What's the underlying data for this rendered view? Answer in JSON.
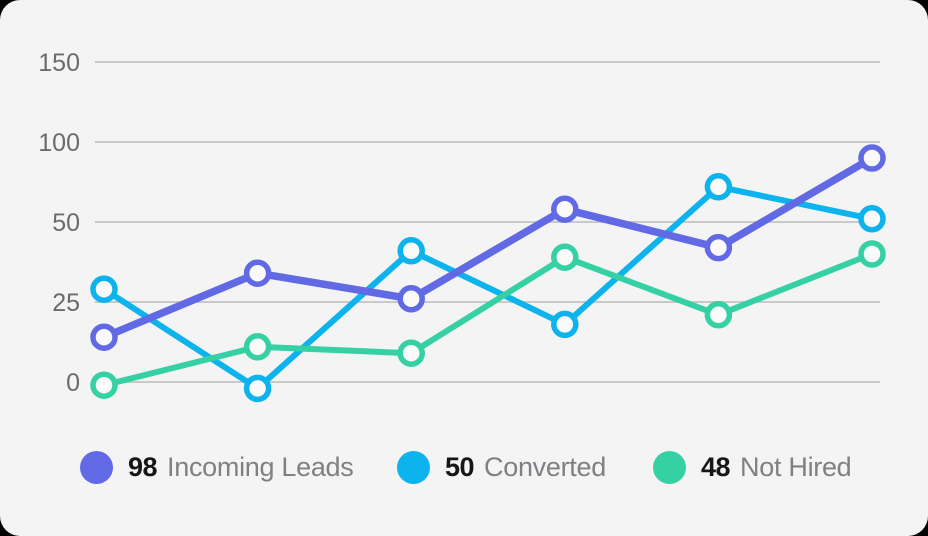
{
  "app": {
    "background_color": "#f4f4f5",
    "outside_color": "#000000",
    "gridline_color": "#c9c9c9",
    "axis_text_color": "#6b6b6e"
  },
  "chart_data": {
    "type": "line",
    "num_points": 6,
    "x_labels": [],
    "y_axis": {
      "tick_labels": [
        "150",
        "100",
        "50",
        "25",
        "0"
      ],
      "tick_values": [
        150,
        100,
        50,
        25,
        0
      ],
      "scale_note": "non-linear: listed ticks are equally spaced",
      "grid": true
    },
    "legend_position": "bottom",
    "series": [
      {
        "name": "Incoming Leads",
        "legend_value": "98",
        "color": "#6269e4",
        "values": [
          14,
          34,
          26,
          58,
          42,
          90
        ]
      },
      {
        "name": "Converted",
        "legend_value": "50",
        "color": "#0cb3ec",
        "values": [
          29,
          -2,
          41,
          18,
          72,
          52
        ]
      },
      {
        "name": "Not Hired",
        "legend_value": "48",
        "color": "#35d1a4",
        "values": [
          -1,
          11,
          9,
          39,
          21,
          40
        ]
      }
    ],
    "marker_fill": "#fafafa"
  }
}
